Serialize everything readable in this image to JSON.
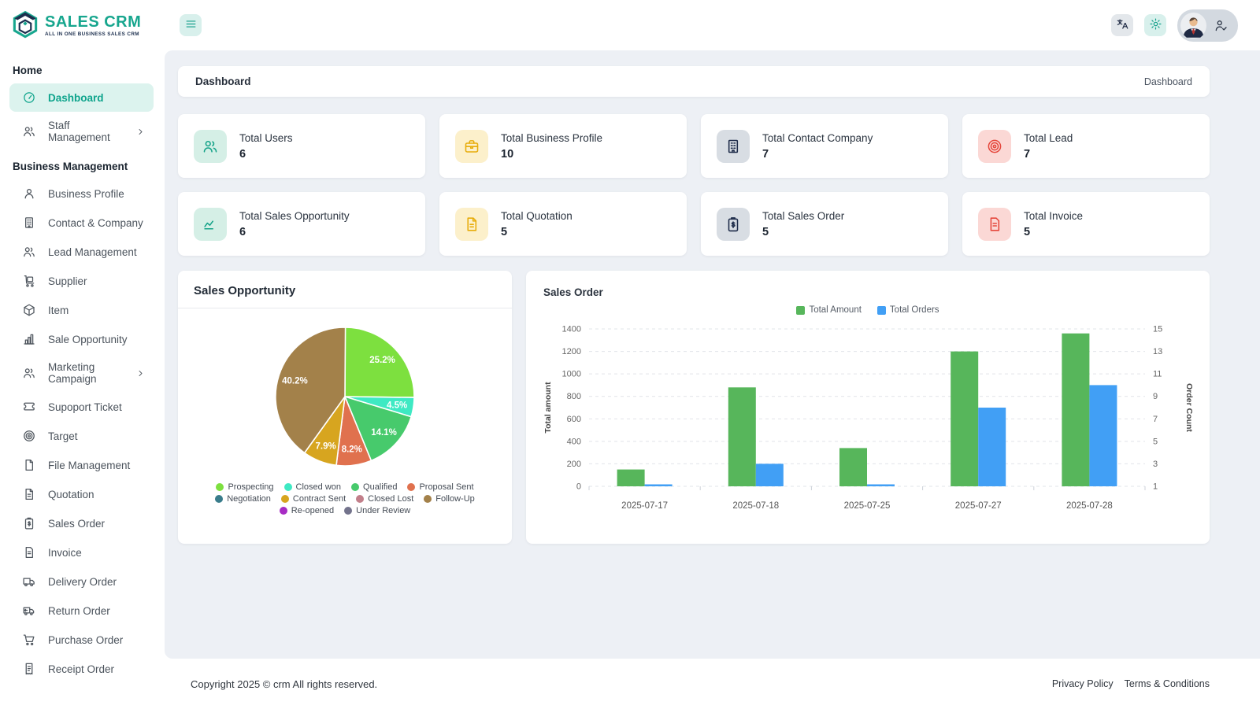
{
  "app": {
    "name": "SALES CRM",
    "tagline": "ALL IN ONE BUSINESS SALES CRM"
  },
  "colors": {
    "accent_teal": "#13a18b",
    "navy": "#1c2f4e",
    "sidebar_active_bg": "#dcf3ee"
  },
  "topbar": {
    "menu_button_icon": "hamburger",
    "translate_button_icon": "translate",
    "settings_button_icon": "gear",
    "profile": {
      "avatar_icon": "male-avatar",
      "status_icon": "person-check"
    }
  },
  "sidebar": {
    "sections": [
      {
        "heading": "Home",
        "items": [
          {
            "label": "Dashboard",
            "icon": "dashboard",
            "active": true
          },
          {
            "label": "Staff Management",
            "icon": "users",
            "chevron": true
          }
        ]
      },
      {
        "heading": "Business Management",
        "items": [
          {
            "label": "Business Profile",
            "icon": "person"
          },
          {
            "label": "Contact & Company",
            "icon": "building"
          },
          {
            "label": "Lead Management",
            "icon": "users"
          },
          {
            "label": "Supplier",
            "icon": "trolley"
          },
          {
            "label": "Item",
            "icon": "package"
          },
          {
            "label": "Sale Opportunity",
            "icon": "bar-chart"
          },
          {
            "label": "Marketing Campaign",
            "icon": "users",
            "chevron": true
          },
          {
            "label": "Supoport Ticket",
            "icon": "ticket"
          },
          {
            "label": "Target",
            "icon": "target"
          },
          {
            "label": "File Management",
            "icon": "file"
          },
          {
            "label": "Quotation",
            "icon": "doc"
          },
          {
            "label": "Sales Order",
            "icon": "clipboard-dollar"
          },
          {
            "label": "Invoice",
            "icon": "invoice"
          },
          {
            "label": "Delivery Order",
            "icon": "truck"
          },
          {
            "label": "Return Order",
            "icon": "truck-return"
          },
          {
            "label": "Purchase Order",
            "icon": "cart"
          },
          {
            "label": "Receipt Order",
            "icon": "receipt"
          }
        ]
      }
    ]
  },
  "page": {
    "title": "Dashboard",
    "breadcrumb": "Dashboard"
  },
  "stats": [
    {
      "label": "Total Users",
      "value": "6",
      "icon": "users",
      "icon_bg": "#d5efe6",
      "icon_color": "#16a389"
    },
    {
      "label": "Total Business Profile",
      "value": "10",
      "icon": "briefcase",
      "icon_bg": "#fcf0cb",
      "icon_color": "#e7ac0a"
    },
    {
      "label": "Total Contact Company",
      "value": "7",
      "icon": "building",
      "icon_bg": "#d8dde3",
      "icon_color": "#1d2b49"
    },
    {
      "label": "Total Lead",
      "value": "7",
      "icon": "target",
      "icon_bg": "#fbd8d5",
      "icon_color": "#e5473c"
    },
    {
      "label": "Total Sales Opportunity",
      "value": "6",
      "icon": "chart-line",
      "icon_bg": "#d5efe6",
      "icon_color": "#16a389"
    },
    {
      "label": "Total Quotation",
      "value": "5",
      "icon": "doc",
      "icon_bg": "#fcf0cb",
      "icon_color": "#e7ac0a"
    },
    {
      "label": "Total Sales Order",
      "value": "5",
      "icon": "clipboard-dollar",
      "icon_bg": "#d8dde3",
      "icon_color": "#1d2b49"
    },
    {
      "label": "Total Invoice",
      "value": "5",
      "icon": "invoice",
      "icon_bg": "#fbd8d5",
      "icon_color": "#e5473c"
    }
  ],
  "chart_data": [
    {
      "type": "pie",
      "title": "Sales Opportunity",
      "slices": [
        {
          "label": "Prospecting",
          "value": 25.2,
          "color": "#7de03f"
        },
        {
          "label": "Closed won",
          "value": 4.5,
          "color": "#3ee9c3"
        },
        {
          "label": "Qualified",
          "value": 14.1,
          "color": "#47ca6c"
        },
        {
          "label": "Proposal Sent",
          "value": 8.2,
          "color": "#e0714e"
        },
        {
          "label": "Contract Sent",
          "value": 7.9,
          "color": "#d7a51f"
        },
        {
          "label": "Follow-Up",
          "value": 40.2,
          "color": "#a3814a"
        }
      ],
      "legend": [
        {
          "label": "Prospecting",
          "color": "#7de03f"
        },
        {
          "label": "Closed won",
          "color": "#3ee9c3"
        },
        {
          "label": "Qualified",
          "color": "#47ca6c"
        },
        {
          "label": "Proposal Sent",
          "color": "#e0714e"
        },
        {
          "label": "Negotiation",
          "color": "#397c8b"
        },
        {
          "label": "Contract Sent",
          "color": "#d7a51f"
        },
        {
          "label": "Closed Lost",
          "color": "#c27f8a"
        },
        {
          "label": "Follow-Up",
          "color": "#a3814a"
        },
        {
          "label": "Re-opened",
          "color": "#a72cc4"
        },
        {
          "label": "Under Review",
          "color": "#73738c"
        }
      ],
      "legend_position": "bottom"
    },
    {
      "type": "bar",
      "title": "Sales Order",
      "categories": [
        "2025-07-17",
        "2025-07-18",
        "2025-07-25",
        "2025-07-27",
        "2025-07-28"
      ],
      "series": [
        {
          "name": "Total Amount",
          "axis": "left",
          "color": "#57b65b",
          "values": [
            150,
            880,
            340,
            1200,
            1360
          ]
        },
        {
          "name": "Total Orders",
          "axis": "right",
          "color": "#419ff5",
          "values": [
            1,
            3,
            1,
            8,
            10
          ]
        }
      ],
      "left_axis": {
        "label": "Total amount",
        "min": 0,
        "max": 1400,
        "step": 200
      },
      "right_axis": {
        "label": "Order Count",
        "min": 1,
        "max": 15,
        "step": 2
      },
      "grid": "dashed",
      "legend_position": "top"
    }
  ],
  "footer": {
    "copyright": "Copyright 2025 © crm All rights reserved.",
    "links": [
      "Privacy Policy",
      "Terms & Conditions"
    ]
  }
}
